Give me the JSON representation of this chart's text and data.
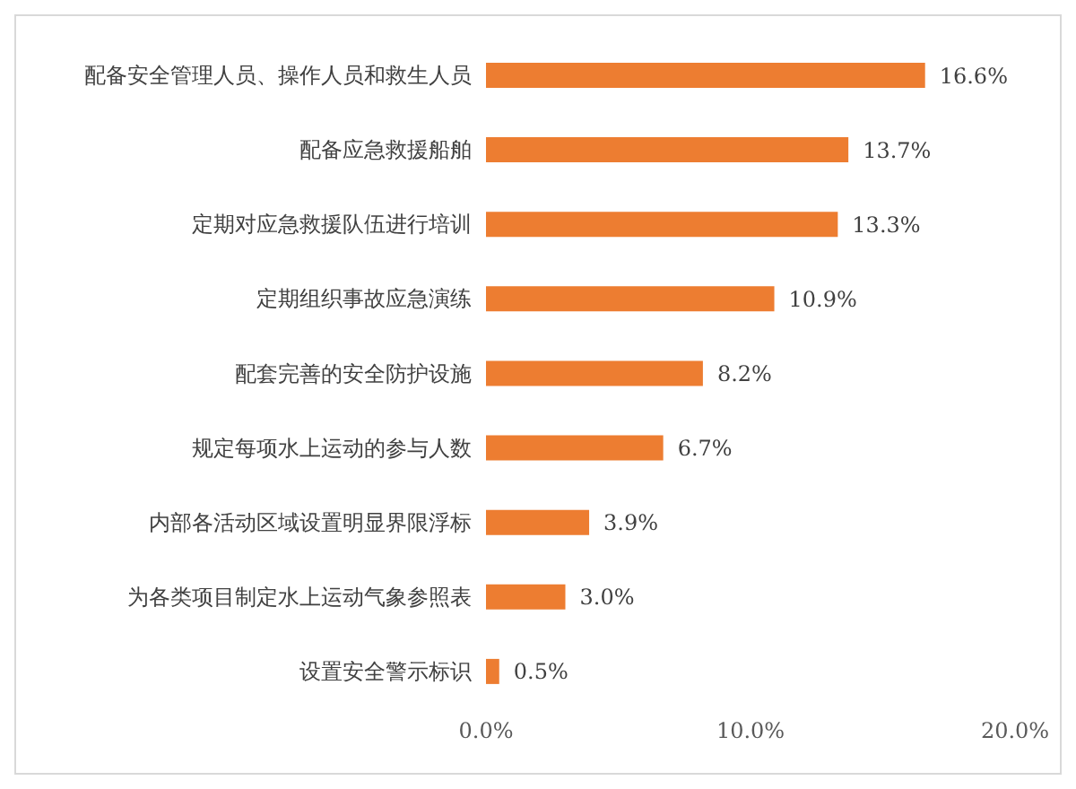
{
  "chart_data": {
    "type": "bar",
    "orientation": "horizontal",
    "categories": [
      "配备安全管理人员、操作人员和救生人员",
      "配备应急救援船舶",
      "定期对应急救援队伍进行培训",
      "定期组织事故应急演练",
      "配套完善的安全防护设施",
      "规定每项水上运动的参与人数",
      "内部各活动区域设置明显界限浮标",
      "为各类项目制定水上运动气象参照表",
      "设置安全警示标识"
    ],
    "values": [
      16.6,
      13.7,
      13.3,
      10.9,
      8.2,
      6.7,
      3.9,
      3.0,
      0.5
    ],
    "value_labels": [
      "16.6%",
      "13.7%",
      "13.3%",
      "10.9%",
      "8.2%",
      "6.7%",
      "3.9%",
      "3.0%",
      "0.5%"
    ],
    "color": "#ed7d31",
    "xlim": [
      0,
      20
    ],
    "xticks": [
      {
        "value": 0,
        "label": "0.0%"
      },
      {
        "value": 10,
        "label": "10.0%"
      },
      {
        "value": 20,
        "label": "20.0%"
      }
    ],
    "grid": false,
    "legend": false
  }
}
